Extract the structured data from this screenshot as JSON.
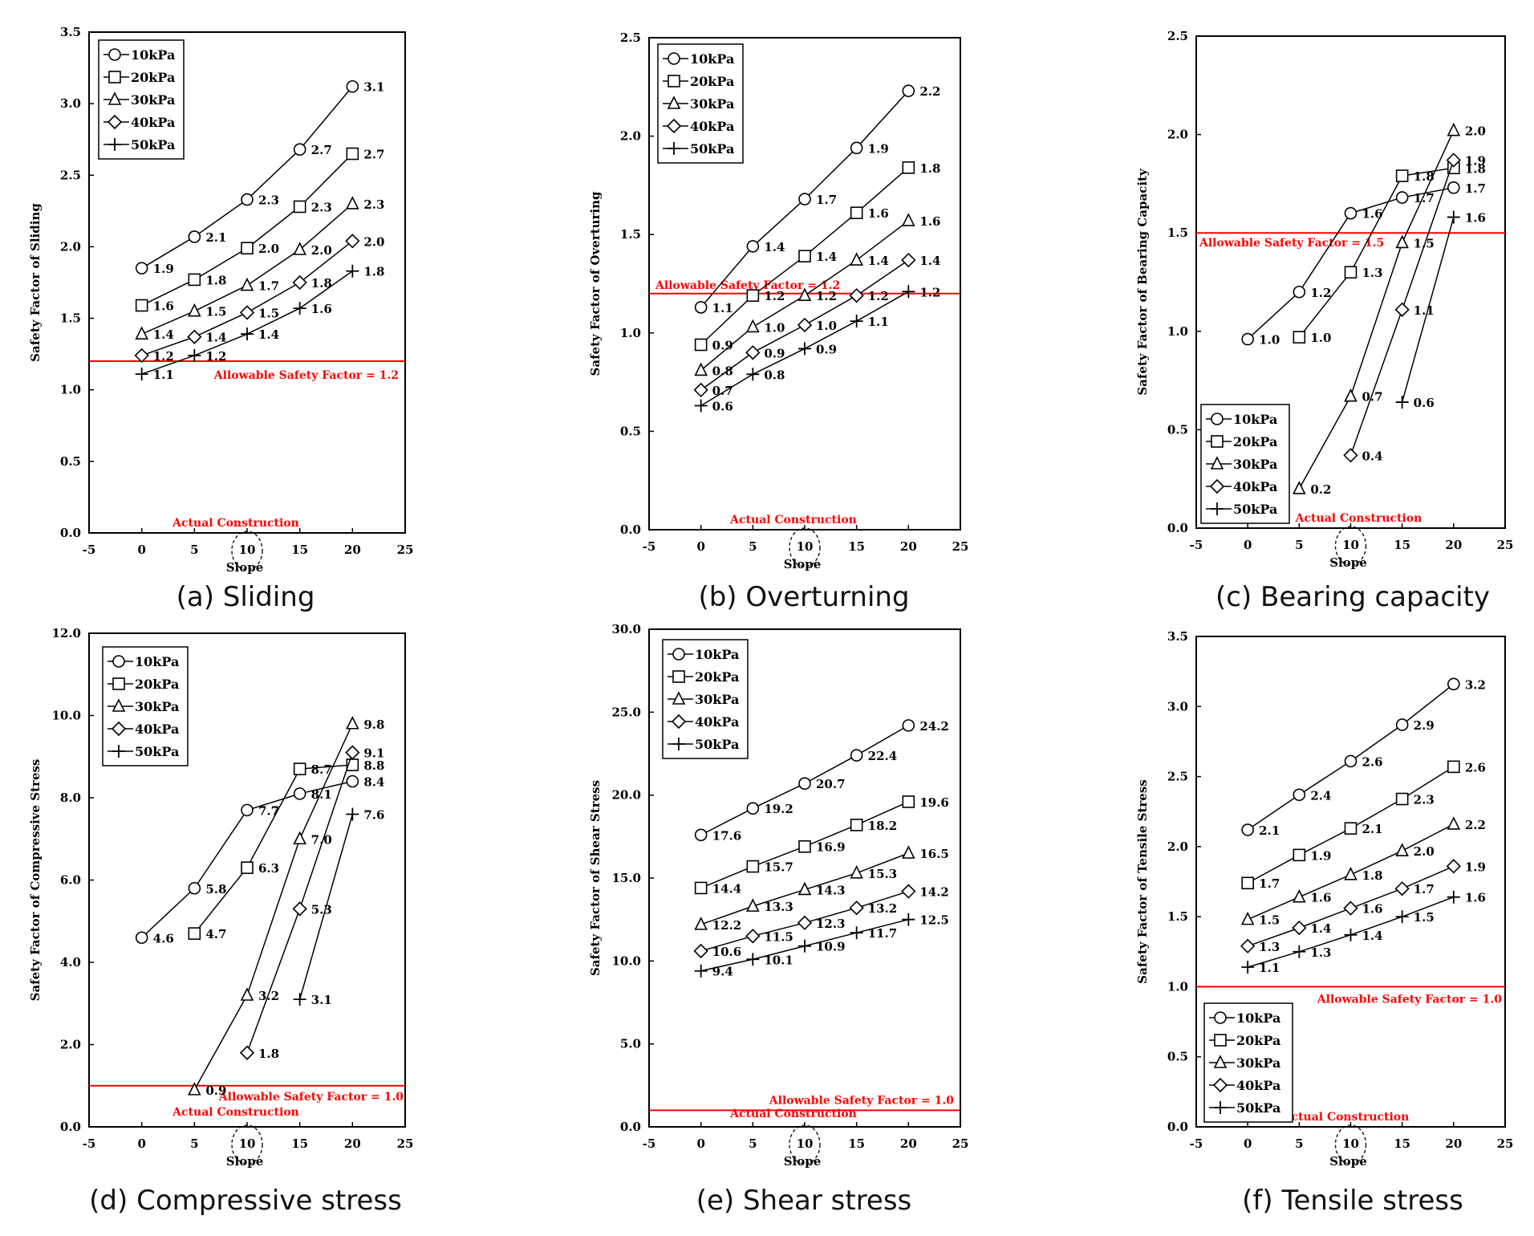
{
  "figure": {
    "series_names": [
      "10kPa",
      "20kPa",
      "30kPa",
      "40kPa",
      "50kPa"
    ],
    "series_markers": [
      "circle",
      "square",
      "triangle",
      "diamond",
      "plus"
    ],
    "x_label": "Slope",
    "x_ticks": [
      "-5",
      "0",
      "5",
      "10",
      "15",
      "20",
      "25"
    ],
    "highlight_note": "Actual Construction",
    "colors": {
      "line": "#000000",
      "threshold": "#ff0000"
    }
  },
  "chart_data": [
    {
      "id": "a",
      "type": "line",
      "caption": "(a) Sliding",
      "ylabel": "Safety Factor of Sliding",
      "xlabel": "Slope",
      "xlim": [
        -5,
        25
      ],
      "ylim": [
        0,
        3.5
      ],
      "yticks": [
        "0.0",
        "0.5",
        "1.0",
        "1.5",
        "2.0",
        "2.5",
        "3.0",
        "3.5"
      ],
      "ystep": 0.5,
      "xticks": [
        -5,
        0,
        5,
        10,
        15,
        20,
        25
      ],
      "threshold": {
        "value": 1.2,
        "label": "Allowable Safety Factor = 1.2"
      },
      "legend_position": "top-left",
      "annotation": "Actual Construction",
      "series": [
        {
          "name": "10kPa",
          "marker": "circle",
          "x": [
            0,
            5,
            10,
            15,
            20
          ],
          "values": [
            1.85,
            2.07,
            2.33,
            2.68,
            3.12
          ],
          "labels": [
            "1.9",
            "2.1",
            "2.3",
            "2.7",
            "3.1"
          ]
        },
        {
          "name": "20kPa",
          "marker": "square",
          "x": [
            0,
            5,
            10,
            15,
            20
          ],
          "values": [
            1.59,
            1.77,
            1.99,
            2.28,
            2.65
          ],
          "labels": [
            "1.6",
            "1.8",
            "2.0",
            "2.3",
            "2.7"
          ]
        },
        {
          "name": "30kPa",
          "marker": "triangle",
          "x": [
            0,
            5,
            10,
            15,
            20
          ],
          "values": [
            1.39,
            1.55,
            1.73,
            1.98,
            2.3
          ],
          "labels": [
            "1.4",
            "1.5",
            "1.7",
            "2.0",
            "2.3"
          ]
        },
        {
          "name": "40kPa",
          "marker": "diamond",
          "x": [
            0,
            5,
            10,
            15,
            20
          ],
          "values": [
            1.24,
            1.37,
            1.54,
            1.75,
            2.04
          ],
          "labels": [
            "1.2",
            "1.4",
            "1.5",
            "1.8",
            "2.0"
          ]
        },
        {
          "name": "50kPa",
          "marker": "plus",
          "x": [
            0,
            5,
            10,
            15,
            20
          ],
          "values": [
            1.11,
            1.24,
            1.39,
            1.57,
            1.83
          ],
          "labels": [
            "1.1",
            "1.2",
            "1.4",
            "1.6",
            "1.8"
          ]
        }
      ]
    },
    {
      "id": "b",
      "type": "line",
      "caption": "(b) Overturning",
      "ylabel": "Safety Factor of Overturing",
      "xlabel": "Slope",
      "xlim": [
        -5,
        25
      ],
      "ylim": [
        0,
        2.5
      ],
      "yticks": [
        "0.0",
        "0.5",
        "1.0",
        "1.5",
        "2.0",
        "2.5"
      ],
      "ystep": 0.5,
      "xticks": [
        -5,
        0,
        5,
        10,
        15,
        20,
        25
      ],
      "threshold": {
        "value": 1.2,
        "label": "Allowable Safety Factor = 1.2"
      },
      "legend_position": "top-left",
      "annotation": "Actual Construction",
      "series": [
        {
          "name": "10kPa",
          "marker": "circle",
          "x": [
            0,
            5,
            10,
            15,
            20
          ],
          "values": [
            1.13,
            1.44,
            1.68,
            1.94,
            2.23
          ],
          "labels": [
            "1.1",
            "1.4",
            "1.7",
            "1.9",
            "2.2"
          ]
        },
        {
          "name": "20kPa",
          "marker": "square",
          "x": [
            0,
            5,
            10,
            15,
            20
          ],
          "values": [
            0.94,
            1.19,
            1.39,
            1.61,
            1.84
          ],
          "labels": [
            "0.9",
            "1.2",
            "1.4",
            "1.6",
            "1.8"
          ]
        },
        {
          "name": "30kPa",
          "marker": "triangle",
          "x": [
            0,
            5,
            10,
            15,
            20
          ],
          "values": [
            0.81,
            1.03,
            1.19,
            1.37,
            1.57
          ],
          "labels": [
            "0.8",
            "1.0",
            "1.2",
            "1.4",
            "1.6"
          ]
        },
        {
          "name": "40kPa",
          "marker": "diamond",
          "x": [
            0,
            5,
            10,
            15,
            20
          ],
          "values": [
            0.71,
            0.9,
            1.04,
            1.19,
            1.37
          ],
          "labels": [
            "0.7",
            "0.9",
            "1.0",
            "1.2",
            "1.4"
          ]
        },
        {
          "name": "50kPa",
          "marker": "plus",
          "x": [
            0,
            5,
            10,
            15,
            20
          ],
          "values": [
            0.63,
            0.79,
            0.92,
            1.06,
            1.21
          ],
          "labels": [
            "0.6",
            "0.8",
            "0.9",
            "1.1",
            "1.2"
          ]
        }
      ]
    },
    {
      "id": "c",
      "type": "line",
      "caption": "(c) Bearing capacity",
      "ylabel": "Safety Factor of Bearing Capacity",
      "xlabel": "Slope",
      "xlim": [
        -5,
        25
      ],
      "ylim": [
        0,
        2.5
      ],
      "yticks": [
        "0.0",
        "0.5",
        "1.0",
        "1.5",
        "2.0",
        "2.5"
      ],
      "ystep": 0.5,
      "xticks": [
        -5,
        0,
        5,
        10,
        15,
        20,
        25
      ],
      "threshold": {
        "value": 1.5,
        "label": "Allowable Safety Factor = 1.5"
      },
      "legend_position": "bottom-left",
      "annotation": "Actual Construction",
      "series": [
        {
          "name": "10kPa",
          "marker": "circle",
          "x": [
            0,
            5,
            10,
            15,
            20
          ],
          "values": [
            0.96,
            1.2,
            1.6,
            1.68,
            1.73
          ],
          "labels": [
            "1.0",
            "1.2",
            "1.6",
            "1.7",
            "1.7"
          ]
        },
        {
          "name": "20kPa",
          "marker": "square",
          "x": [
            5,
            10,
            15,
            20
          ],
          "values": [
            0.97,
            1.3,
            1.79,
            1.83
          ],
          "labels": [
            "1.0",
            "1.3",
            "1.8",
            "1.8"
          ]
        },
        {
          "name": "30kPa",
          "marker": "triangle",
          "x": [
            5,
            10,
            15,
            20
          ],
          "values": [
            0.2,
            0.67,
            1.45,
            2.02
          ],
          "labels": [
            "0.2",
            "0.7",
            "1.5",
            "2.0"
          ]
        },
        {
          "name": "40kPa",
          "marker": "diamond",
          "x": [
            10,
            15,
            20
          ],
          "values": [
            0.37,
            1.11,
            1.87
          ],
          "labels": [
            "0.4",
            "1.1",
            "1.9"
          ]
        },
        {
          "name": "50kPa",
          "marker": "plus",
          "x": [
            15,
            20
          ],
          "values": [
            0.64,
            1.58
          ],
          "labels": [
            "0.6",
            "1.6"
          ]
        }
      ]
    },
    {
      "id": "d",
      "type": "line",
      "caption": "(d) Compressive stress",
      "ylabel": "Safety Factor of Compressive Stress",
      "xlabel": "Slope",
      "xlim": [
        -5,
        25
      ],
      "ylim": [
        0,
        12
      ],
      "yticks": [
        "0.0",
        "2.0",
        "4.0",
        "6.0",
        "8.0",
        "10.0",
        "12.0"
      ],
      "ystep": 2,
      "xticks": [
        -5,
        0,
        5,
        10,
        15,
        20,
        25
      ],
      "threshold": {
        "value": 1.0,
        "label": "Allowable Safety Factor = 1.0"
      },
      "legend_position": "top-left",
      "annotation": "Actual Construction",
      "series": [
        {
          "name": "10kPa",
          "marker": "circle",
          "x": [
            0,
            5,
            10,
            15,
            20
          ],
          "values": [
            4.6,
            5.8,
            7.7,
            8.1,
            8.4
          ],
          "labels": [
            "4.6",
            "5.8",
            "7.7",
            "8.1",
            "8.4"
          ]
        },
        {
          "name": "20kPa",
          "marker": "square",
          "x": [
            5,
            10,
            15,
            20
          ],
          "values": [
            4.7,
            6.3,
            8.7,
            8.8
          ],
          "labels": [
            "4.7",
            "6.3",
            "8.7",
            "8.8"
          ]
        },
        {
          "name": "30kPa",
          "marker": "triangle",
          "x": [
            5,
            10,
            15,
            20
          ],
          "values": [
            0.9,
            3.2,
            7.0,
            9.8
          ],
          "labels": [
            "0.9",
            "3.2",
            "7.0",
            "9.8"
          ]
        },
        {
          "name": "40kPa",
          "marker": "diamond",
          "x": [
            10,
            15,
            20
          ],
          "values": [
            1.8,
            5.3,
            9.1
          ],
          "labels": [
            "1.8",
            "5.3",
            "9.1"
          ]
        },
        {
          "name": "50kPa",
          "marker": "plus",
          "x": [
            15,
            20
          ],
          "values": [
            3.1,
            7.6
          ],
          "labels": [
            "3.1",
            "7.6"
          ]
        }
      ]
    },
    {
      "id": "e",
      "type": "line",
      "caption": "(e) Shear stress",
      "ylabel": "Safety Factor of Shear Stress",
      "xlabel": "Slope",
      "xlim": [
        -5,
        25
      ],
      "ylim": [
        0,
        30
      ],
      "yticks": [
        "0.0",
        "5.0",
        "10.0",
        "15.0",
        "20.0",
        "25.0",
        "30.0"
      ],
      "ystep": 5,
      "xticks": [
        -5,
        0,
        5,
        10,
        15,
        20,
        25
      ],
      "threshold": {
        "value": 1.0,
        "label": "Allowable Safety Factor = 1.0"
      },
      "legend_position": "top-left",
      "annotation": "Actual Construction",
      "series": [
        {
          "name": "10kPa",
          "marker": "circle",
          "x": [
            0,
            5,
            10,
            15,
            20
          ],
          "values": [
            17.6,
            19.2,
            20.7,
            22.4,
            24.2
          ],
          "labels": [
            "17.6",
            "19.2",
            "20.7",
            "22.4",
            "24.2"
          ]
        },
        {
          "name": "20kPa",
          "marker": "square",
          "x": [
            0,
            5,
            10,
            15,
            20
          ],
          "values": [
            14.4,
            15.7,
            16.9,
            18.2,
            19.6
          ],
          "labels": [
            "14.4",
            "15.7",
            "16.9",
            "18.2",
            "19.6"
          ]
        },
        {
          "name": "30kPa",
          "marker": "triangle",
          "x": [
            0,
            5,
            10,
            15,
            20
          ],
          "values": [
            12.2,
            13.3,
            14.3,
            15.3,
            16.5
          ],
          "labels": [
            "12.2",
            "13.3",
            "14.3",
            "15.3",
            "16.5"
          ]
        },
        {
          "name": "40kPa",
          "marker": "diamond",
          "x": [
            0,
            5,
            10,
            15,
            20
          ],
          "values": [
            10.6,
            11.5,
            12.3,
            13.2,
            14.2
          ],
          "labels": [
            "10.6",
            "11.5",
            "12.3",
            "13.2",
            "14.2"
          ]
        },
        {
          "name": "50kPa",
          "marker": "plus",
          "x": [
            0,
            5,
            10,
            15,
            20
          ],
          "values": [
            9.4,
            10.1,
            10.9,
            11.7,
            12.5
          ],
          "labels": [
            "9.4",
            "10.1",
            "10.9",
            "11.7",
            "12.5"
          ]
        }
      ]
    },
    {
      "id": "f",
      "type": "line",
      "caption": "(f) Tensile stress",
      "ylabel": "Safety Factor of Tensile Stress",
      "xlabel": "Slope",
      "xlim": [
        -5,
        25
      ],
      "ylim": [
        0,
        3.5
      ],
      "yticks": [
        "0.0",
        "0.5",
        "1.0",
        "1.5",
        "2.0",
        "2.5",
        "3.0",
        "3.5"
      ],
      "ystep": 0.5,
      "xticks": [
        -5,
        0,
        5,
        10,
        15,
        20,
        25
      ],
      "threshold": {
        "value": 1.0,
        "label": "Allowable Safety Factor = 1.0"
      },
      "legend_position": "bottom-left",
      "annotation": "Actual Construction",
      "series": [
        {
          "name": "10kPa",
          "marker": "circle",
          "x": [
            0,
            5,
            10,
            15,
            20
          ],
          "values": [
            2.12,
            2.37,
            2.61,
            2.87,
            3.16
          ],
          "labels": [
            "2.1",
            "2.4",
            "2.6",
            "2.9",
            "3.2"
          ]
        },
        {
          "name": "20kPa",
          "marker": "square",
          "x": [
            0,
            5,
            10,
            15,
            20
          ],
          "values": [
            1.74,
            1.94,
            2.13,
            2.34,
            2.57
          ],
          "labels": [
            "1.7",
            "1.9",
            "2.1",
            "2.3",
            "2.6"
          ]
        },
        {
          "name": "30kPa",
          "marker": "triangle",
          "x": [
            0,
            5,
            10,
            15,
            20
          ],
          "values": [
            1.48,
            1.64,
            1.8,
            1.97,
            2.16
          ],
          "labels": [
            "1.5",
            "1.6",
            "1.8",
            "2.0",
            "2.2"
          ]
        },
        {
          "name": "40kPa",
          "marker": "diamond",
          "x": [
            0,
            5,
            10,
            15,
            20
          ],
          "values": [
            1.29,
            1.42,
            1.56,
            1.7,
            1.86
          ],
          "labels": [
            "1.3",
            "1.4",
            "1.6",
            "1.7",
            "1.9"
          ]
        },
        {
          "name": "50kPa",
          "marker": "plus",
          "x": [
            0,
            5,
            10,
            15,
            20
          ],
          "values": [
            1.14,
            1.25,
            1.37,
            1.5,
            1.64
          ],
          "labels": [
            "1.1",
            "1.3",
            "1.4",
            "1.5",
            "1.6"
          ]
        }
      ]
    }
  ]
}
